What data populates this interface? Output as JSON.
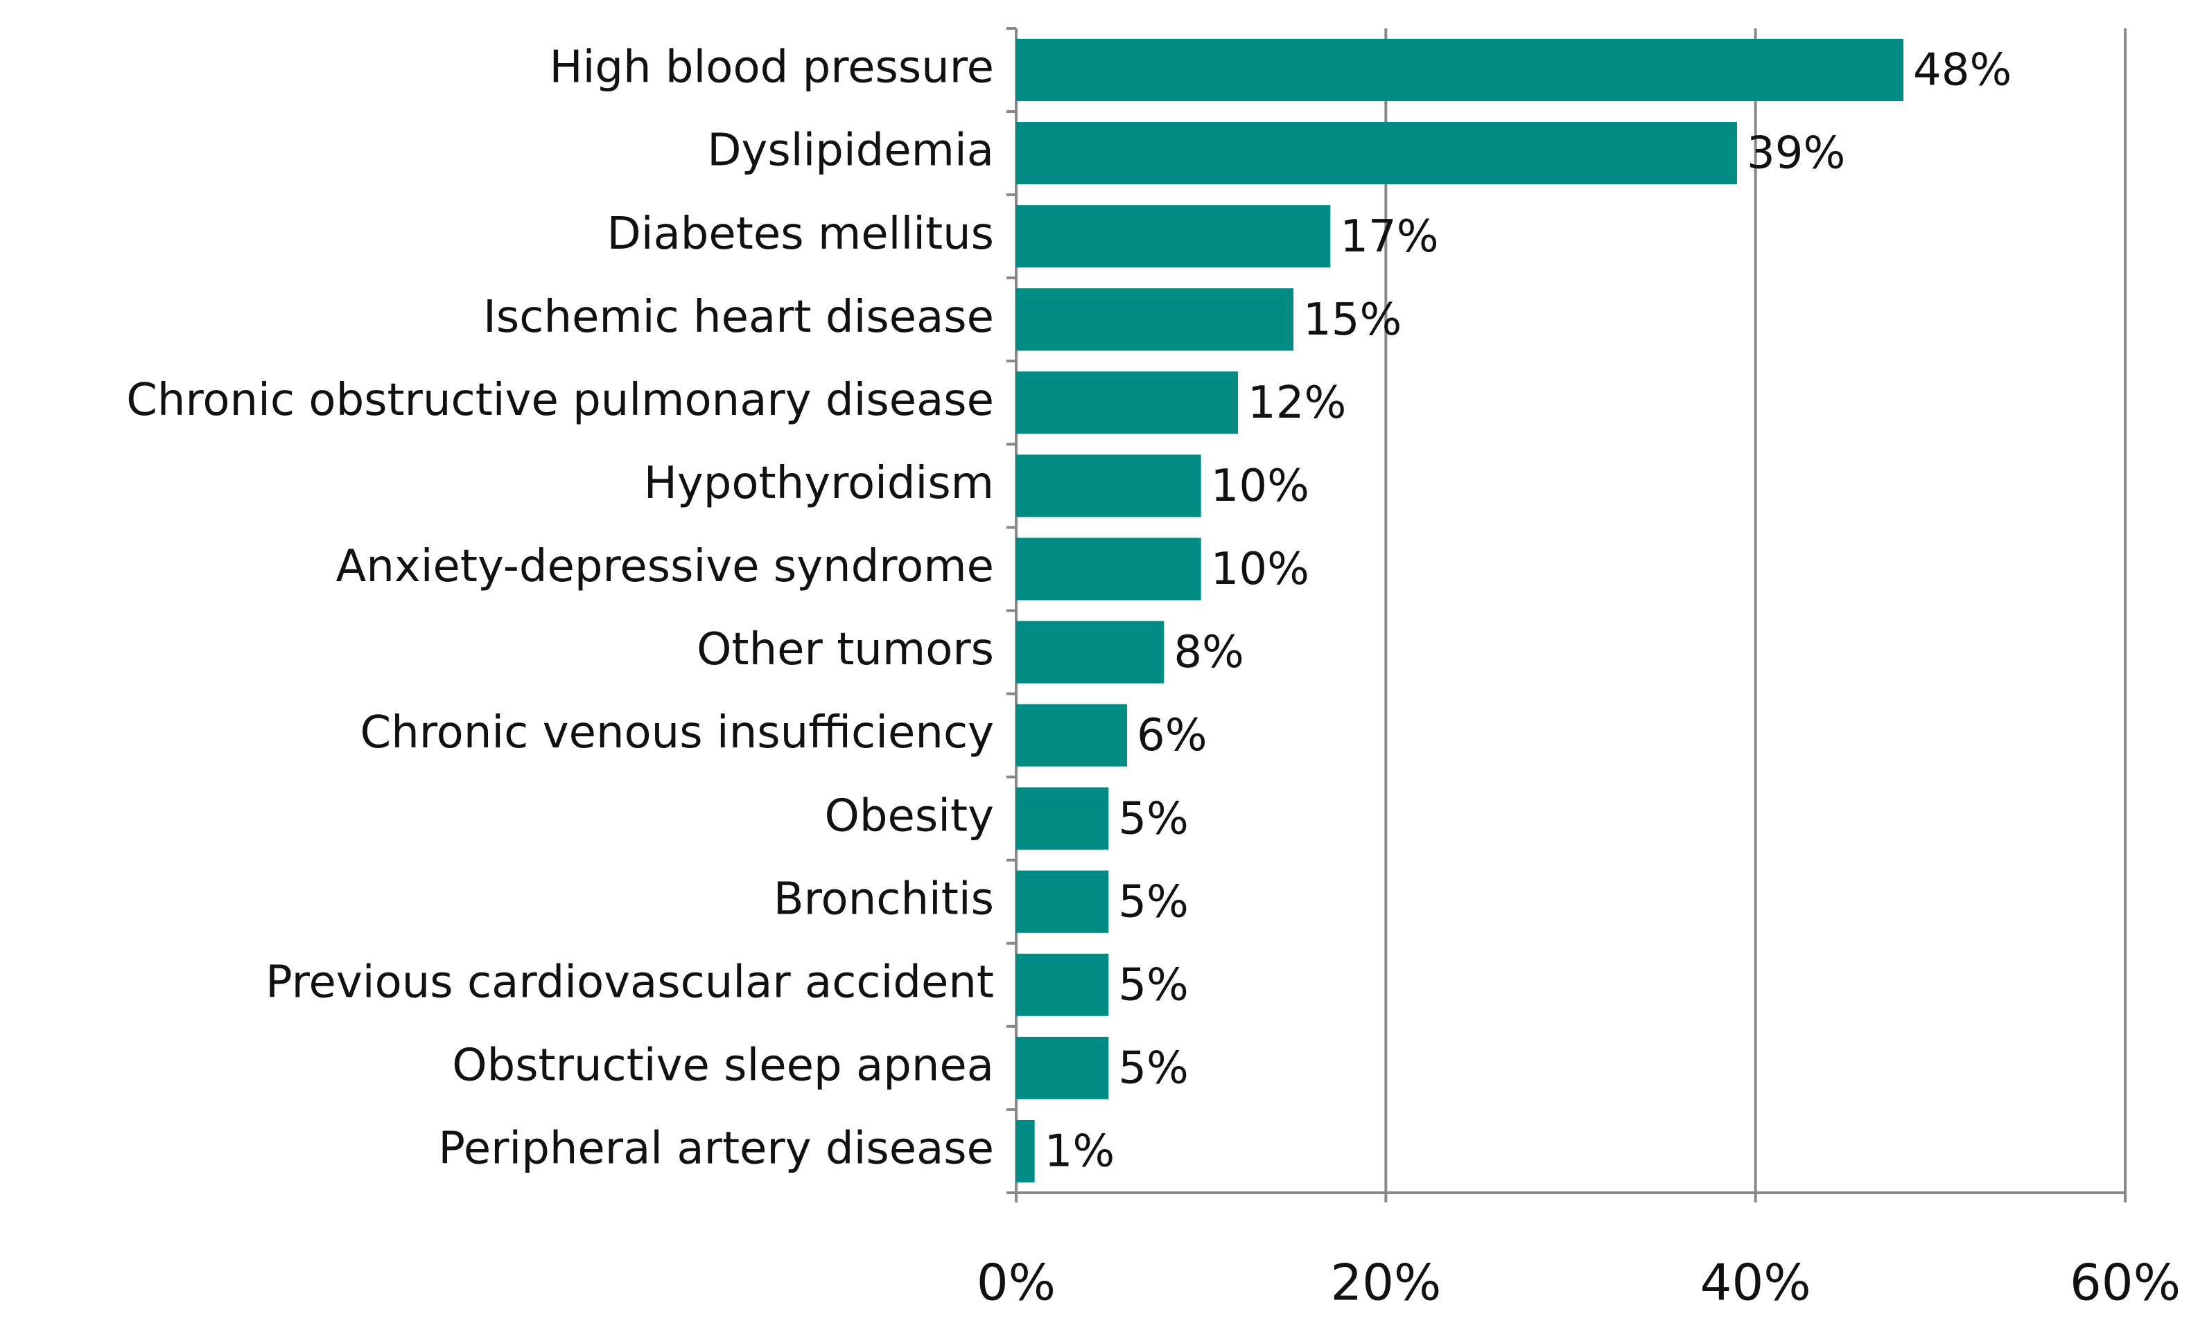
{
  "chart_data": {
    "type": "bar",
    "orientation": "horizontal",
    "categories": [
      "High blood pressure",
      "Dyslipidemia",
      "Diabetes mellitus",
      "Ischemic heart disease",
      "Chronic obstructive pulmonary disease",
      "Hypothyroidism",
      "Anxiety-depressive syndrome",
      "Other tumors",
      "Chronic venous insufficiency",
      "Obesity",
      "Bronchitis",
      "Previous cardiovascular accident",
      "Obstructive sleep apnea",
      "Peripheral artery disease"
    ],
    "values": [
      48,
      39,
      17,
      15,
      12,
      10,
      10,
      8,
      6,
      5,
      5,
      5,
      5,
      1
    ],
    "value_labels": [
      "48%",
      "39%",
      "17%",
      "15%",
      "12%",
      "10%",
      "10%",
      "8%",
      "6%",
      "5%",
      "5%",
      "5%",
      "5%",
      "1%"
    ],
    "color": "#008b84",
    "xlim": [
      0,
      60
    ],
    "xticks": [
      {
        "value": 0,
        "label": "0%"
      },
      {
        "value": 20,
        "label": "20%"
      },
      {
        "value": 40,
        "label": "40%"
      },
      {
        "value": 60,
        "label": "60%"
      }
    ],
    "grid": true
  }
}
